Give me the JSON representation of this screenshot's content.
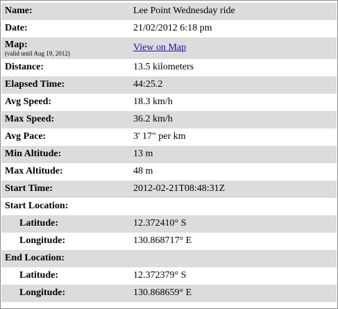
{
  "colors": {
    "border": "#8c8c8c",
    "row_shade": "#dcdcdc",
    "link": "#1a0dab"
  },
  "rows": {
    "name": {
      "label": "Name:",
      "value": "Lee Point Wednesday ride"
    },
    "date": {
      "label": "Date:",
      "value": "21/02/2012 6:18 pm"
    },
    "map": {
      "label": "Map:",
      "note": "(valid until Aug 19, 2012)",
      "link_text": "View on Map"
    },
    "distance": {
      "label": "Distance:",
      "value": "13.5 kilometers"
    },
    "elapsed_time": {
      "label": "Elapsed Time:",
      "value": "44:25.2"
    },
    "avg_speed": {
      "label": "Avg Speed:",
      "value": "18.3 km/h"
    },
    "max_speed": {
      "label": "Max Speed:",
      "value": "36.2 km/h"
    },
    "avg_pace": {
      "label": "Avg Pace:",
      "value": "3' 17\" per km"
    },
    "min_altitude": {
      "label": "Min Altitude:",
      "value": "13 m"
    },
    "max_altitude": {
      "label": "Max Altitude:",
      "value": "48 m"
    },
    "start_time": {
      "label": "Start Time:",
      "value": "2012-02-21T08:48:31Z"
    },
    "start_location": {
      "label": "Start Location:"
    },
    "start_latitude": {
      "label": "Latitude:",
      "value": "12.372410° S"
    },
    "start_longitude": {
      "label": "Longitude:",
      "value": "130.868717° E"
    },
    "end_location": {
      "label": "End Location:"
    },
    "end_latitude": {
      "label": "Latitude:",
      "value": "12.372379° S"
    },
    "end_longitude": {
      "label": "Longitude:",
      "value": "130.868659° E"
    }
  }
}
